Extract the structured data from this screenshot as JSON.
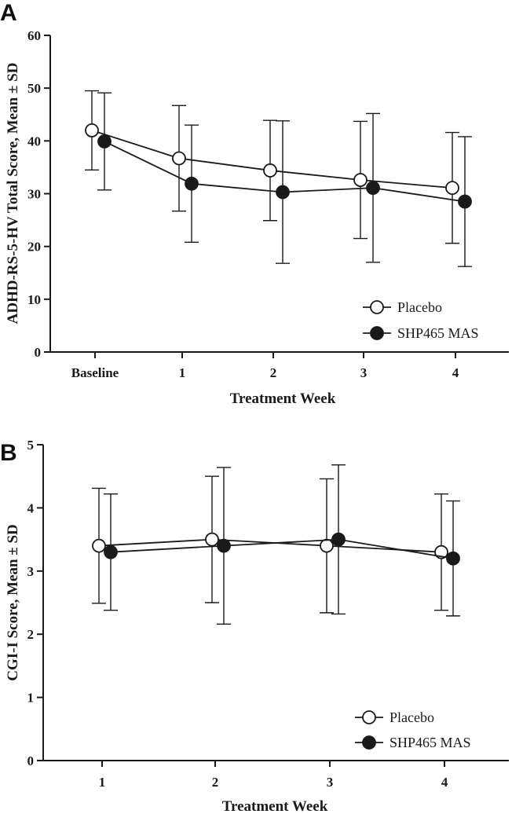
{
  "chart_data": [
    {
      "panel": "A",
      "type": "line",
      "categories": [
        "Baseline",
        "1",
        "2",
        "3",
        "4"
      ],
      "ylabel": "ADHD-RS-5-HV Total Score, Mean ± SD",
      "xlabel": "Treatment Week",
      "ylim": [
        0,
        60
      ],
      "yticks": [
        "0",
        "10",
        "20",
        "30",
        "40",
        "50",
        "60"
      ],
      "legend_position": "bottom-right",
      "series": [
        {
          "name": "Placebo",
          "marker": "open-circle",
          "values": [
            42.0,
            36.7,
            34.4,
            32.6,
            31.1
          ],
          "sd": [
            7.5,
            10.0,
            9.5,
            11.1,
            10.5
          ]
        },
        {
          "name": "SHP465 MAS",
          "marker": "filled-circle",
          "values": [
            39.9,
            31.9,
            30.3,
            31.1,
            28.5
          ],
          "sd": [
            9.2,
            11.1,
            13.5,
            14.1,
            12.3
          ]
        }
      ]
    },
    {
      "panel": "B",
      "type": "line",
      "categories": [
        "1",
        "2",
        "3",
        "4"
      ],
      "ylabel": "CGI-I Score, Mean ± SD",
      "xlabel": "Treatment Week",
      "ylim": [
        0,
        5
      ],
      "yticks": [
        "0",
        "1",
        "2",
        "3",
        "4",
        "5"
      ],
      "legend_position": "bottom-right",
      "series": [
        {
          "name": "Placebo",
          "marker": "open-circle",
          "values": [
            3.4,
            3.5,
            3.4,
            3.3
          ],
          "sd": [
            0.91,
            1.0,
            1.06,
            0.92
          ]
        },
        {
          "name": "SHP465 MAS",
          "marker": "filled-circle",
          "values": [
            3.3,
            3.4,
            3.5,
            3.2
          ],
          "sd": [
            0.92,
            1.24,
            1.18,
            0.91
          ]
        }
      ]
    }
  ]
}
